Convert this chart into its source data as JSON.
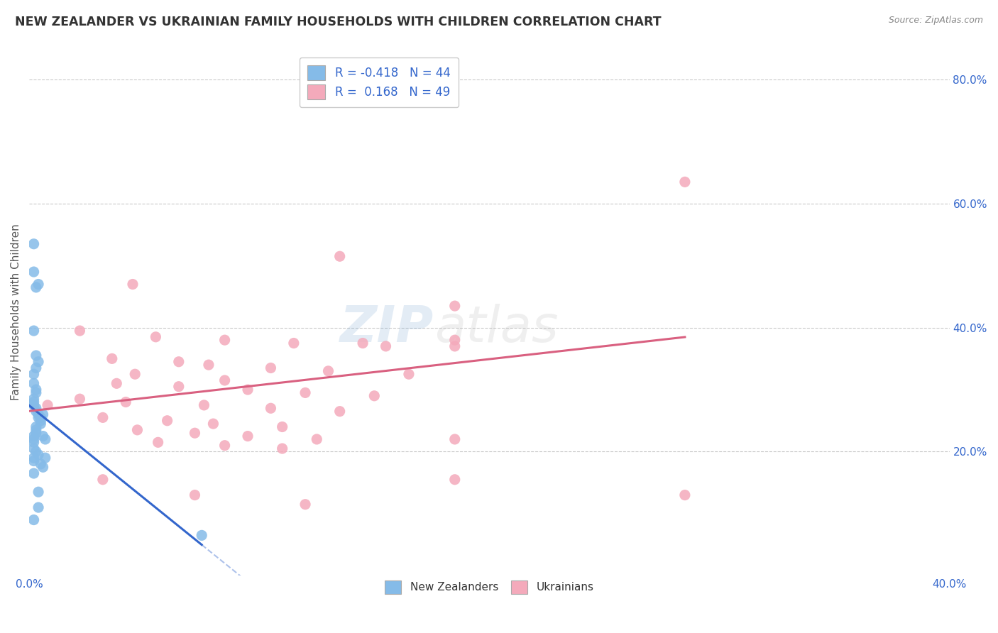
{
  "title": "NEW ZEALANDER VS UKRAINIAN FAMILY HOUSEHOLDS WITH CHILDREN CORRELATION CHART",
  "source": "Source: ZipAtlas.com",
  "ylabel": "Family Households with Children",
  "xmin": 0.0,
  "xmax": 0.4,
  "ymin": 0.0,
  "ymax": 0.85,
  "y_ticks_right": [
    0.2,
    0.4,
    0.6,
    0.8
  ],
  "y_tick_labels_right": [
    "20.0%",
    "40.0%",
    "60.0%",
    "80.0%"
  ],
  "nz_color": "#85BBE8",
  "ukr_color": "#F4AABB",
  "nz_line_color": "#3366CC",
  "ukr_line_color": "#D96080",
  "nz_R": -0.418,
  "nz_N": 44,
  "ukr_R": 0.168,
  "ukr_N": 49,
  "watermark_zip": "ZIP",
  "watermark_atlas": "atlas",
  "background_color": "#FFFFFF",
  "grid_color": "#BBBBBB",
  "nz_scatter": [
    [
      0.002,
      0.535
    ],
    [
      0.002,
      0.49
    ],
    [
      0.003,
      0.465
    ],
    [
      0.004,
      0.47
    ],
    [
      0.002,
      0.395
    ],
    [
      0.003,
      0.355
    ],
    [
      0.004,
      0.345
    ],
    [
      0.003,
      0.335
    ],
    [
      0.002,
      0.325
    ],
    [
      0.002,
      0.31
    ],
    [
      0.003,
      0.3
    ],
    [
      0.003,
      0.295
    ],
    [
      0.002,
      0.285
    ],
    [
      0.002,
      0.28
    ],
    [
      0.002,
      0.275
    ],
    [
      0.003,
      0.27
    ],
    [
      0.003,
      0.265
    ],
    [
      0.004,
      0.26
    ],
    [
      0.004,
      0.255
    ],
    [
      0.005,
      0.255
    ],
    [
      0.005,
      0.25
    ],
    [
      0.005,
      0.245
    ],
    [
      0.003,
      0.24
    ],
    [
      0.003,
      0.235
    ],
    [
      0.003,
      0.23
    ],
    [
      0.002,
      0.225
    ],
    [
      0.002,
      0.22
    ],
    [
      0.002,
      0.215
    ],
    [
      0.006,
      0.225
    ],
    [
      0.007,
      0.22
    ],
    [
      0.002,
      0.205
    ],
    [
      0.003,
      0.2
    ],
    [
      0.004,
      0.195
    ],
    [
      0.002,
      0.19
    ],
    [
      0.002,
      0.185
    ],
    [
      0.007,
      0.19
    ],
    [
      0.005,
      0.18
    ],
    [
      0.006,
      0.175
    ],
    [
      0.002,
      0.165
    ],
    [
      0.004,
      0.135
    ],
    [
      0.004,
      0.11
    ],
    [
      0.002,
      0.09
    ],
    [
      0.075,
      0.065
    ],
    [
      0.006,
      0.26
    ]
  ],
  "ukr_scatter": [
    [
      0.155,
      0.795
    ],
    [
      0.285,
      0.635
    ],
    [
      0.135,
      0.515
    ],
    [
      0.045,
      0.47
    ],
    [
      0.185,
      0.435
    ],
    [
      0.022,
      0.395
    ],
    [
      0.055,
      0.385
    ],
    [
      0.085,
      0.38
    ],
    [
      0.115,
      0.375
    ],
    [
      0.155,
      0.37
    ],
    [
      0.185,
      0.37
    ],
    [
      0.145,
      0.375
    ],
    [
      0.036,
      0.35
    ],
    [
      0.065,
      0.345
    ],
    [
      0.078,
      0.34
    ],
    [
      0.105,
      0.335
    ],
    [
      0.13,
      0.33
    ],
    [
      0.046,
      0.325
    ],
    [
      0.165,
      0.325
    ],
    [
      0.085,
      0.315
    ],
    [
      0.038,
      0.31
    ],
    [
      0.065,
      0.305
    ],
    [
      0.095,
      0.3
    ],
    [
      0.12,
      0.295
    ],
    [
      0.15,
      0.29
    ],
    [
      0.022,
      0.285
    ],
    [
      0.042,
      0.28
    ],
    [
      0.076,
      0.275
    ],
    [
      0.105,
      0.27
    ],
    [
      0.135,
      0.265
    ],
    [
      0.032,
      0.255
    ],
    [
      0.06,
      0.25
    ],
    [
      0.08,
      0.245
    ],
    [
      0.11,
      0.24
    ],
    [
      0.047,
      0.235
    ],
    [
      0.072,
      0.23
    ],
    [
      0.095,
      0.225
    ],
    [
      0.125,
      0.22
    ],
    [
      0.185,
      0.22
    ],
    [
      0.056,
      0.215
    ],
    [
      0.085,
      0.21
    ],
    [
      0.11,
      0.205
    ],
    [
      0.032,
      0.155
    ],
    [
      0.185,
      0.155
    ],
    [
      0.072,
      0.13
    ],
    [
      0.285,
      0.13
    ],
    [
      0.12,
      0.115
    ],
    [
      0.185,
      0.38
    ],
    [
      0.008,
      0.275
    ]
  ]
}
